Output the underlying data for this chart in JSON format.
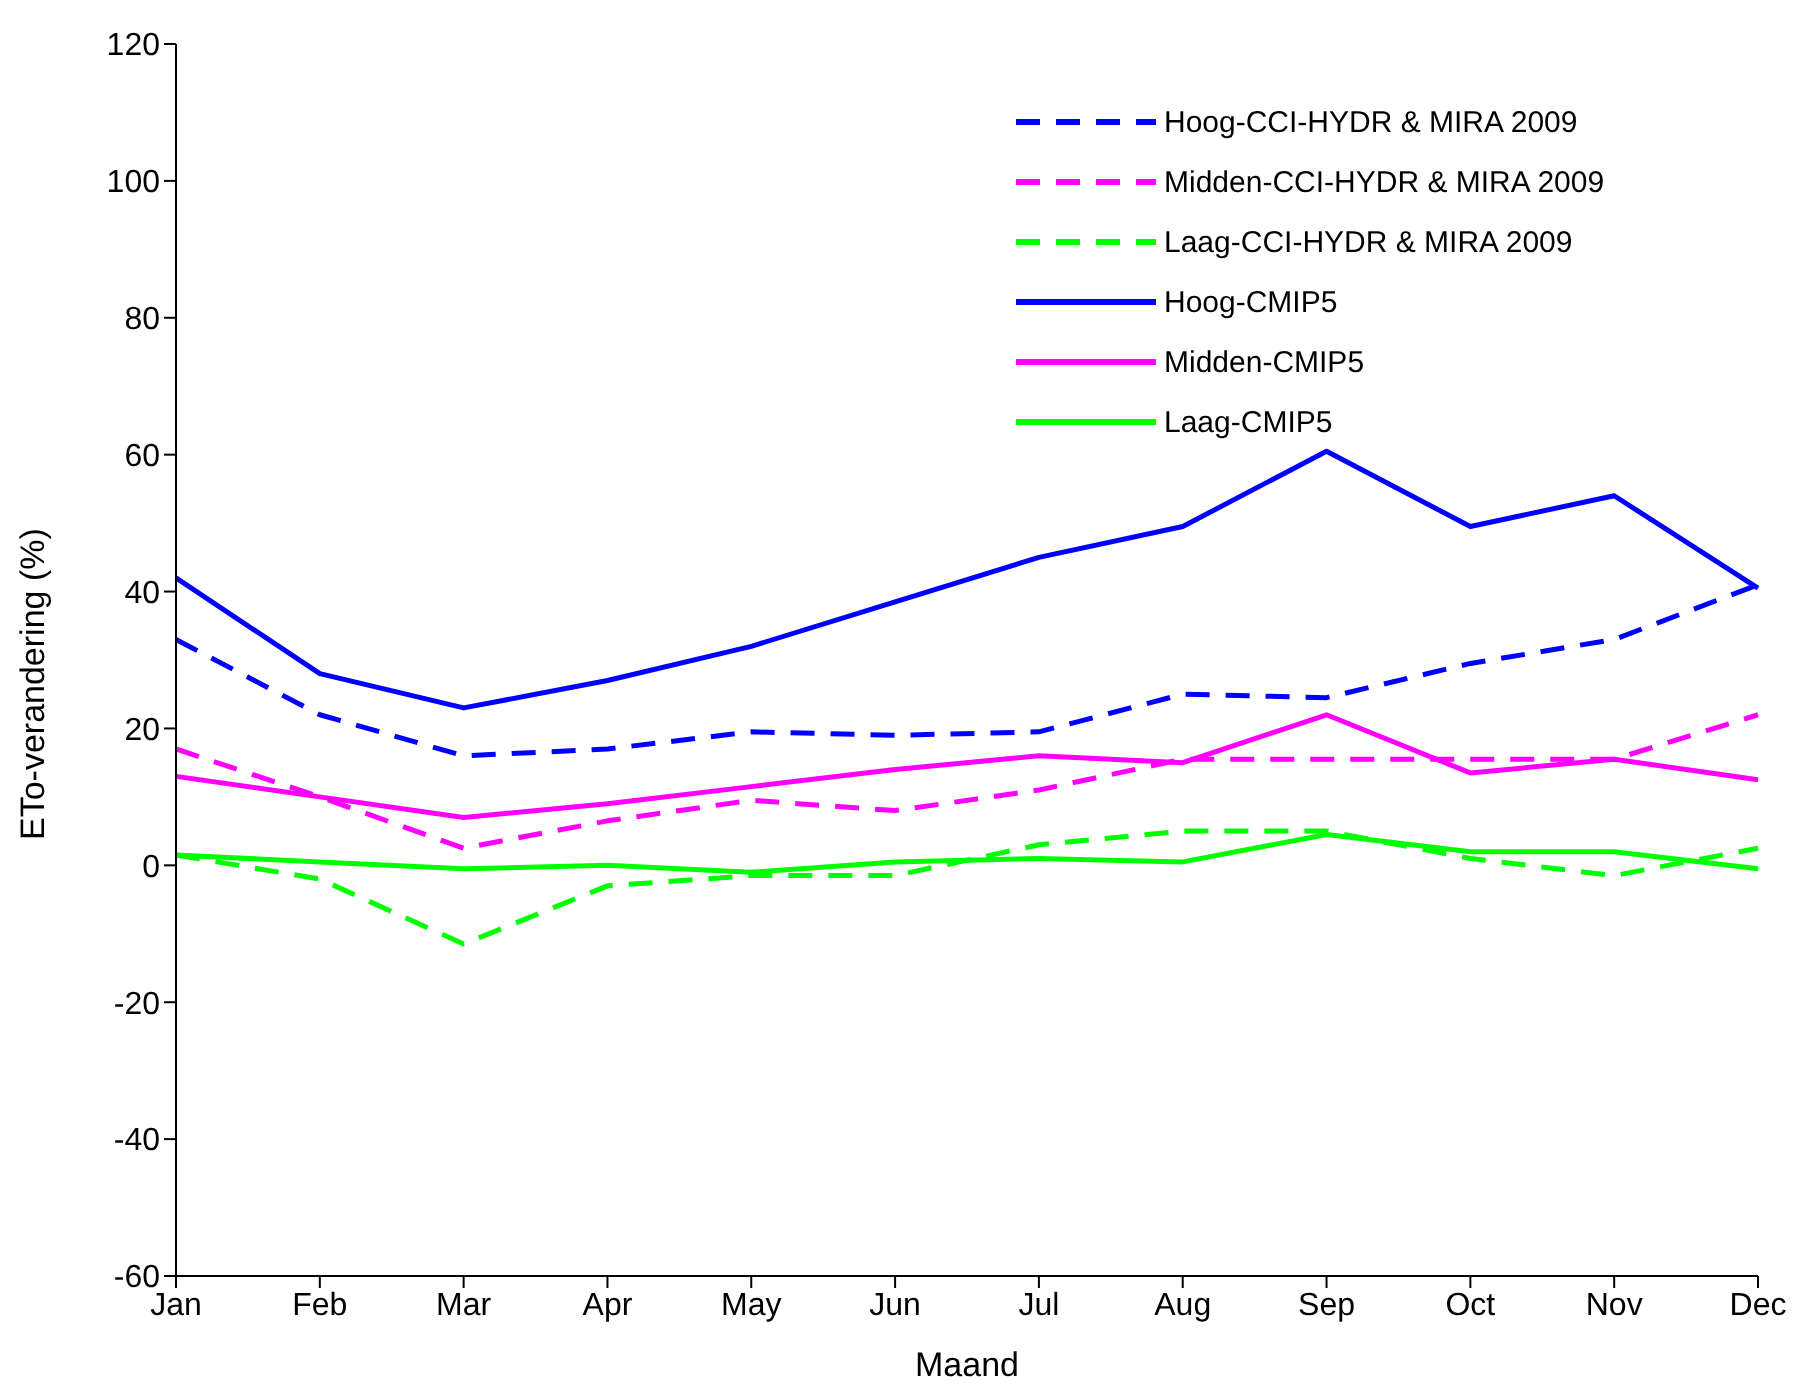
{
  "chart_data": {
    "type": "line",
    "xlabel": "Maand",
    "ylabel": "ETo-verandering (%)",
    "categories": [
      "Jan",
      "Feb",
      "Mar",
      "Apr",
      "May",
      "Jun",
      "Jul",
      "Aug",
      "Sep",
      "Oct",
      "Nov",
      "Dec"
    ],
    "series": [
      {
        "name": "Hoog-CCI-HYDR & MIRA 2009",
        "color": "#0000ff",
        "line_style": "dashed",
        "values": [
          33,
          22,
          16,
          17,
          19.5,
          19,
          19.5,
          25,
          24.5,
          29.5,
          33,
          41
        ]
      },
      {
        "name": "Midden-CCI-HYDR & MIRA 2009",
        "color": "#ff00ff",
        "line_style": "dashed",
        "values": [
          17,
          10,
          2.5,
          6.5,
          9.5,
          8,
          11,
          15.5,
          15.5,
          15.5,
          15.5,
          22
        ]
      },
      {
        "name": "Laag-CCI-HYDR & MIRA 2009",
        "color": "#00ff00",
        "line_style": "dashed",
        "values": [
          1.5,
          -2,
          -11.5,
          -3,
          -1.5,
          -1.5,
          3,
          5,
          5,
          1,
          -1.5,
          2.5
        ]
      },
      {
        "name": "Hoog-CMIP5",
        "color": "#0000ff",
        "line_style": "solid",
        "values": [
          42,
          28,
          23,
          27,
          32,
          38.5,
          45,
          49.5,
          60.5,
          49.5,
          54,
          40.5
        ]
      },
      {
        "name": "Midden-CMIP5",
        "color": "#ff00ff",
        "line_style": "solid",
        "values": [
          13,
          10,
          7,
          9,
          11.5,
          14,
          16,
          15,
          22,
          13.5,
          15.5,
          12.5
        ]
      },
      {
        "name": "Laag-CMIP5",
        "color": "#00ff00",
        "line_style": "solid",
        "values": [
          1.5,
          0.5,
          -0.5,
          0,
          -1,
          0.5,
          1,
          0.5,
          4.5,
          2,
          2,
          -0.5
        ]
      }
    ],
    "ylim": [
      -60,
      120
    ],
    "yticks": [
      -60,
      -40,
      -20,
      0,
      20,
      40,
      60,
      80,
      100,
      120
    ],
    "grid": false,
    "legend": "top right",
    "marker": "none"
  }
}
